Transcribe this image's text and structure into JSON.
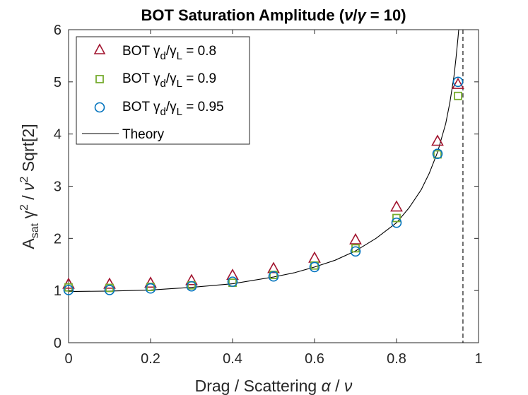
{
  "chart_data": {
    "type": "scatter",
    "title_parts": [
      "BOT Saturation Amplitude (",
      "ν",
      "/",
      "γ",
      " = 10)"
    ],
    "xlabel_parts": [
      "Drag / Scattering ",
      "α",
      " / ",
      "ν"
    ],
    "ylabel_parts": [
      "A",
      "sat",
      " γ",
      "2",
      " / ",
      "ν",
      "2",
      " Sqrt[2]"
    ],
    "xlim": [
      0,
      1
    ],
    "ylim": [
      0,
      6
    ],
    "x_ticks": [
      0,
      0.2,
      0.4,
      0.6,
      0.8,
      1
    ],
    "x_tick_labels": [
      "0",
      "0.2",
      "0.4",
      "0.6",
      "0.8",
      "1"
    ],
    "y_ticks": [
      0,
      1,
      2,
      3,
      4,
      5,
      6
    ],
    "y_tick_labels": [
      "0",
      "1",
      "2",
      "3",
      "4",
      "5",
      "6"
    ],
    "grid": false,
    "legend_position": "top-left",
    "series": [
      {
        "label_parts": [
          "BOT γ",
          "d",
          "/γ",
          "L",
          " = 0.8"
        ],
        "marker": "triangle",
        "color": "#A2142F",
        "x": [
          0,
          0.1,
          0.2,
          0.3,
          0.4,
          0.5,
          0.6,
          0.7,
          0.8,
          0.9,
          0.95
        ],
        "y": [
          1.12,
          1.12,
          1.14,
          1.19,
          1.29,
          1.42,
          1.62,
          1.97,
          2.6,
          3.86,
          4.95
        ]
      },
      {
        "label_parts": [
          "BOT γ",
          "d",
          "/γ",
          "L",
          " = 0.9"
        ],
        "marker": "square",
        "color": "#77AC30",
        "x": [
          0,
          0.1,
          0.2,
          0.3,
          0.4,
          0.5,
          0.6,
          0.7,
          0.8,
          0.9,
          0.95
        ],
        "y": [
          1.06,
          1.05,
          1.07,
          1.1,
          1.15,
          1.3,
          1.48,
          1.81,
          2.39,
          3.61,
          4.73
        ]
      },
      {
        "label_parts": [
          "BOT γ",
          "d",
          "/γ",
          "L",
          " = 0.95"
        ],
        "marker": "circle",
        "color": "#0072BD",
        "x": [
          0,
          0.1,
          0.2,
          0.3,
          0.4,
          0.5,
          0.6,
          0.7,
          0.8,
          0.9,
          0.95
        ],
        "y": [
          1.01,
          1.01,
          1.04,
          1.08,
          1.17,
          1.27,
          1.45,
          1.75,
          2.3,
          3.62,
          5.0
        ]
      }
    ],
    "theory": {
      "label": "Theory",
      "color": "#000000",
      "x": [
        0,
        0.1,
        0.2,
        0.3,
        0.4,
        0.5,
        0.55,
        0.6,
        0.65,
        0.7,
        0.75,
        0.8,
        0.83,
        0.86,
        0.88,
        0.9,
        0.92,
        0.93,
        0.94,
        0.945,
        0.95,
        0.955
      ],
      "y": [
        0.98,
        0.99,
        1.01,
        1.06,
        1.13,
        1.26,
        1.34,
        1.45,
        1.58,
        1.76,
        2.0,
        2.3,
        2.58,
        2.93,
        3.25,
        3.65,
        4.2,
        4.6,
        5.1,
        5.45,
        5.85,
        6.3
      ]
    },
    "asymptote_x": 0.962
  }
}
